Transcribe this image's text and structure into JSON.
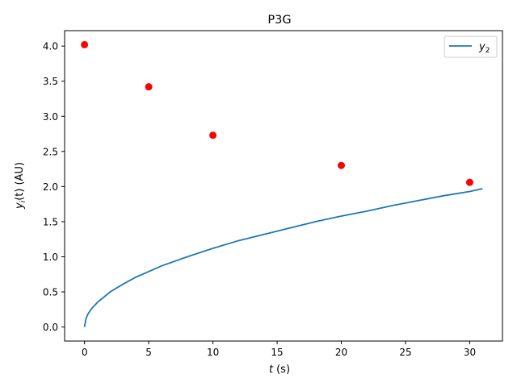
{
  "chart_data": {
    "type": "line",
    "title": "P3G",
    "xlabel": {
      "var": "t",
      "unit": "(s)"
    },
    "ylabel": {
      "var": "y",
      "sub": "i",
      "arg": "(t)",
      "unit": "(AU)"
    },
    "xlim": [
      -1.55,
      32.55
    ],
    "ylim": [
      -0.2,
      4.22
    ],
    "xticks": [
      0,
      5,
      10,
      15,
      20,
      25,
      30
    ],
    "xtick_labels": [
      "0",
      "5",
      "10",
      "15",
      "20",
      "25",
      "30"
    ],
    "yticks": [
      0.0,
      0.5,
      1.0,
      1.5,
      2.0,
      2.5,
      3.0,
      3.5,
      4.0
    ],
    "ytick_labels": [
      "0.0",
      "0.5",
      "1.0",
      "1.5",
      "2.0",
      "2.5",
      "3.0",
      "3.5",
      "4.0"
    ],
    "grid": false,
    "legend_position": "top-right",
    "series": [
      {
        "name": "y2",
        "legend_var": "y",
        "legend_sub": "2",
        "kind": "line",
        "color": "#1f77b4",
        "x": [
          0,
          0.1,
          0.25,
          0.5,
          1,
          2,
          3,
          4,
          5,
          6,
          8,
          10,
          12,
          14,
          16,
          18,
          20,
          22,
          24,
          26,
          28,
          30,
          31
        ],
        "y": [
          0.0,
          0.11,
          0.18,
          0.25,
          0.35,
          0.5,
          0.61,
          0.71,
          0.79,
          0.87,
          1.0,
          1.12,
          1.23,
          1.32,
          1.41,
          1.5,
          1.58,
          1.65,
          1.73,
          1.8,
          1.87,
          1.93,
          1.97
        ]
      },
      {
        "kind": "scatter",
        "color": "#ff0000",
        "x": [
          0,
          5,
          10,
          20,
          30
        ],
        "y": [
          4.02,
          3.42,
          2.73,
          2.3,
          2.06
        ]
      }
    ]
  }
}
